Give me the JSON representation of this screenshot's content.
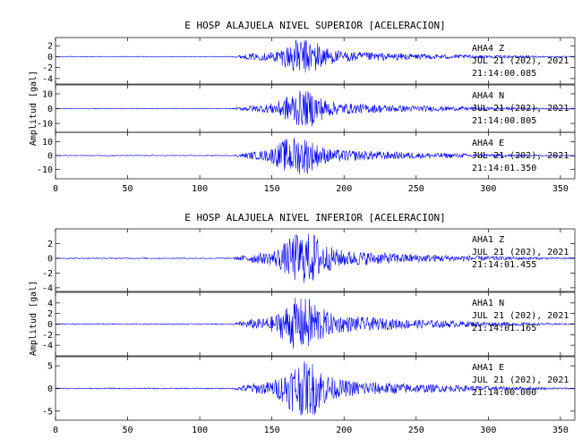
{
  "chart_data": [
    {
      "type": "line",
      "title": "E HOSP ALAJUELA NIVEL SUPERIOR [ACELERACION]",
      "ylabel": "Amplitud [gal]",
      "xlim": [
        0,
        360
      ],
      "x_ticks": [
        0,
        50,
        100,
        150,
        200,
        250,
        300,
        350
      ],
      "line_color": "#0000ff",
      "traces": [
        {
          "station": "AHA4",
          "component": "Z",
          "date": "JUL 21 (202), 2021",
          "time": "21:14:00.085",
          "ylim": [
            -5,
            3.5
          ],
          "y_ticks": [
            2,
            0,
            -2,
            -4
          ],
          "peak": 3.2,
          "peak_time": 171
        },
        {
          "station": "AHA4",
          "component": "N",
          "date": "JUL 21 (202), 2021",
          "time": "21:14:00.805",
          "ylim": [
            -16,
            16
          ],
          "y_ticks": [
            10,
            0,
            -10
          ],
          "peak": 12,
          "peak_time": 170
        },
        {
          "station": "AHA4",
          "component": "E",
          "date": "JUL 21 (202), 2021",
          "time": "21:14:01.350",
          "ylim": [
            -17,
            17
          ],
          "y_ticks": [
            10,
            0,
            -10
          ],
          "peak": 14,
          "peak_time": 166
        }
      ]
    },
    {
      "type": "line",
      "title": "E HOSP ALAJUELA NIVEL INFERIOR [ACELERACION]",
      "ylabel": "Amplitud [gal]",
      "xlim": [
        0,
        360
      ],
      "x_ticks": [
        0,
        50,
        100,
        150,
        200,
        250,
        300,
        350
      ],
      "line_color": "#0000ff",
      "traces": [
        {
          "station": "AHA1",
          "component": "Z",
          "date": "JUL 21 (202), 2021",
          "time": "21:14:01.455",
          "ylim": [
            -4.5,
            4
          ],
          "y_ticks": [
            2,
            0,
            -2,
            -4
          ],
          "peak": 3.5,
          "peak_time": 171
        },
        {
          "station": "AHA1",
          "component": "N",
          "date": "JUL 21 (202), 2021",
          "time": "21:14:01.165",
          "ylim": [
            -6,
            6
          ],
          "y_ticks": [
            4,
            2,
            0,
            -2,
            -4
          ],
          "peak": 5,
          "peak_time": 170
        },
        {
          "station": "AHA1",
          "component": "E",
          "date": "JUL 21 (202), 2021",
          "time": "21:14:00.000",
          "ylim": [
            -7,
            7
          ],
          "y_ticks": [
            5,
            0,
            -5
          ],
          "peak": 6,
          "peak_time": 171
        }
      ]
    }
  ]
}
